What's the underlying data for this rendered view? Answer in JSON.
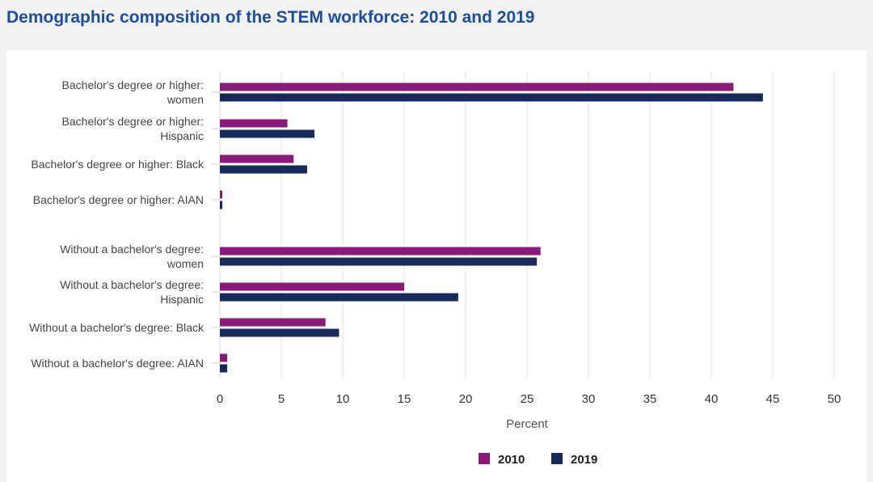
{
  "title": "Demographic composition of the STEM workforce: 2010 and 2019",
  "chart_data": {
    "type": "bar",
    "orientation": "horizontal",
    "categories": [
      [
        "Bachelor's degree or higher:",
        "women"
      ],
      [
        "Bachelor's degree or higher:",
        "Hispanic"
      ],
      [
        "Bachelor's degree or higher: Black"
      ],
      [
        "Bachelor's degree or higher: AIAN"
      ],
      [
        "Without a bachelor's degree:",
        "women"
      ],
      [
        "Without a bachelor's degree:",
        "Hispanic"
      ],
      [
        "Without a bachelor's degree: Black"
      ],
      [
        "Without a bachelor's degree: AIAN"
      ]
    ],
    "series": [
      {
        "name": "2010",
        "color": "#8a1a7a",
        "values": [
          41.8,
          5.5,
          6.0,
          0.2,
          26.1,
          15.0,
          8.6,
          0.6
        ]
      },
      {
        "name": "2019",
        "color": "#172a5c",
        "values": [
          44.2,
          7.7,
          7.1,
          0.2,
          25.8,
          19.4,
          9.7,
          0.6
        ]
      }
    ],
    "xlabel": "Percent",
    "ylabel": "",
    "xlim": [
      0,
      50
    ],
    "xticks": [
      0,
      5,
      10,
      15,
      20,
      25,
      30,
      35,
      40,
      45,
      50
    ],
    "grid": true,
    "legend": "bottom-center"
  }
}
